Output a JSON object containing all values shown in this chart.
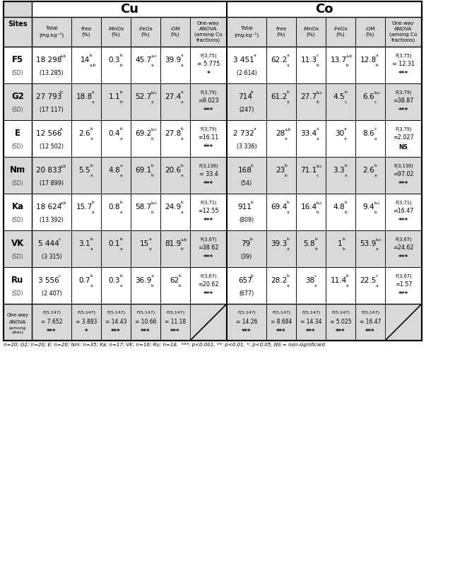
{
  "footnote": "n=20; G2: n=20; E: n=20; Nm: n=35; Ka: n=17; VK: n=16; Ru: n=18.  ***: p<0.001, **: p<0.01, *: p<0.05, NS = non-significant",
  "sites": [
    "F5",
    "G2",
    "E",
    "Nm",
    "Ka",
    "VK",
    "Ru"
  ],
  "cu_total": [
    "18 298",
    "27 793",
    "12 566",
    "20 833",
    "18 624",
    "5 444",
    "3 556"
  ],
  "cu_total_sd": [
    "(13 285)",
    "(17 117)",
    "(12 502)",
    "(17 899)",
    "(13 392)",
    "(3 315)",
    "(2 407)"
  ],
  "cu_total_sup": [
    "a,b",
    "b",
    "a",
    "a,b",
    "a,b",
    "c",
    "c"
  ],
  "cu_free": [
    "14",
    "18.8",
    "2.6",
    "5.5",
    "15.7",
    "3.1",
    "0.7"
  ],
  "cu_free_sup": [
    "b",
    "a",
    "b",
    "b",
    "b",
    "b",
    "b"
  ],
  "cu_free_sub": [
    "a,b",
    "a",
    "a",
    "a",
    "a",
    "a",
    "a"
  ],
  "cu_mnox": [
    "0.3",
    "1.1",
    "0.4",
    "4.8",
    "0.8",
    "0.1",
    "0.3"
  ],
  "cu_mnox_sup": [
    "b",
    "b",
    "b",
    "a",
    "b",
    "b",
    "b"
  ],
  "cu_mnox_sub": [
    "b",
    "b",
    "a",
    "a",
    "a",
    "a",
    "a"
  ],
  "cu_feox": [
    "45.7",
    "52.7",
    "69.2",
    "69.1",
    "58.7",
    "15",
    "36.9"
  ],
  "cu_feox_sup": [
    "a,c",
    "b,c",
    "b,c",
    "b",
    "b,c",
    "a",
    "a"
  ],
  "cu_feox_sub": [
    "a",
    "a",
    "b",
    "b",
    "b",
    "a",
    "b"
  ],
  "cu_om": [
    "39.9",
    "27.4",
    "27.8",
    "20.6",
    "24.9",
    "81.9",
    "62"
  ],
  "cu_om_sup": [
    "a",
    "a",
    "b",
    "b",
    "b",
    "a,b",
    "b"
  ],
  "cu_om_sub": [
    "a",
    "a",
    "a",
    "a",
    "a",
    "b",
    "b"
  ],
  "cu_anova_f": [
    "F(3,75)",
    "F(3,79)",
    "F(3,79)",
    "F(3,136)",
    "F(3,71)",
    "F(3,67)",
    "F(3,67)"
  ],
  "cu_anova_val": [
    "= 5.775",
    "=9.023",
    "=16.11",
    "= 33.4",
    "=12.55",
    "=38.62",
    "=20.62"
  ],
  "cu_anova_sig": [
    "*",
    "***",
    "***",
    "***",
    "***",
    "***",
    "***"
  ],
  "co_total": [
    "3 451",
    "714",
    "2 732",
    "168",
    "911",
    "79",
    "657"
  ],
  "co_total_sd": [
    "(2 614)",
    "(247)",
    "(3 336)",
    "(54)",
    "(809)",
    "(39)",
    "(677)"
  ],
  "co_total_sup": [
    "a",
    "b",
    "a",
    "b",
    "b",
    "b",
    "b"
  ],
  "co_free": [
    "62.2",
    "61.2",
    "28",
    "23",
    "69.4",
    "39.3",
    "28.2"
  ],
  "co_free_sup": [
    "a",
    "b",
    "a,b",
    "b",
    "b",
    "b",
    "b"
  ],
  "co_free_sub": [
    "a",
    "a",
    "a",
    "b",
    "a",
    "a",
    "a"
  ],
  "co_mnox": [
    "11.3",
    "27.7",
    "33.4",
    "71.1",
    "16.4",
    "5.8",
    "38"
  ],
  "co_mnox_sup": [
    "c",
    "b,c",
    "a",
    "b,c",
    "b,c",
    "b",
    "c"
  ],
  "co_mnox_sub": [
    "b",
    "b",
    "a",
    "c",
    "b",
    "b",
    "a"
  ],
  "co_feox": [
    "13.7",
    "4.5",
    "30",
    "3.3",
    "4.8",
    "1",
    "11.4"
  ],
  "co_feox_sup": [
    "a,b",
    "b",
    "a",
    "b",
    "b",
    "b",
    "b"
  ],
  "co_feox_sub": [
    "b",
    "c",
    "a",
    "a",
    "b",
    "b",
    "a"
  ],
  "co_om": [
    "12.8",
    "6.6",
    "8.6",
    "2.6",
    "9.4",
    "53.9",
    "22.5"
  ],
  "co_om_sup": [
    "a",
    "b,c",
    "c",
    "b",
    "b,c",
    "b,c",
    "c"
  ],
  "co_om_sub": [
    "b",
    "c",
    "a",
    "a",
    "b",
    "a",
    "a"
  ],
  "co_anova_f": [
    "F(3,75)",
    "F(3,79)",
    "F(3,79)",
    "F(3,136)",
    "F(3,71)",
    "F(3,67)",
    "F(3,67)"
  ],
  "co_anova_val": [
    "= 12.31",
    "=38.87",
    "=2.027",
    "=97.02",
    "=16.47",
    "=24.62",
    "=1.57"
  ],
  "co_anova_sig": [
    "***",
    "***",
    "NS",
    "***",
    "***",
    "***",
    "***"
  ],
  "anova_row_cu_f": [
    "F(5,147)",
    "F(5,147)",
    "F(5,147)",
    "F(5,147)",
    "F(5,147)"
  ],
  "anova_row_cu_val": [
    "= 7.652",
    "= 3.883",
    "= 14.43",
    "= 10.66",
    "= 11.18"
  ],
  "anova_row_cu_sig": [
    "***",
    "*",
    "***",
    "***",
    "***"
  ],
  "anova_row_co_f": [
    "F(5,147)",
    "F(5,147)",
    "F(5,147)",
    "F(5,147)",
    "F(5,147)"
  ],
  "anova_row_co_val": [
    "= 14.26",
    "= 8.684",
    "= 14.34",
    "= 5.025",
    "= 16.47"
  ],
  "anova_row_co_sig": [
    "***",
    "***",
    "***",
    "***",
    "***"
  ],
  "WHITE": "#ffffff",
  "LGRAY": "#d9d9d9",
  "BLACK": "#000000"
}
